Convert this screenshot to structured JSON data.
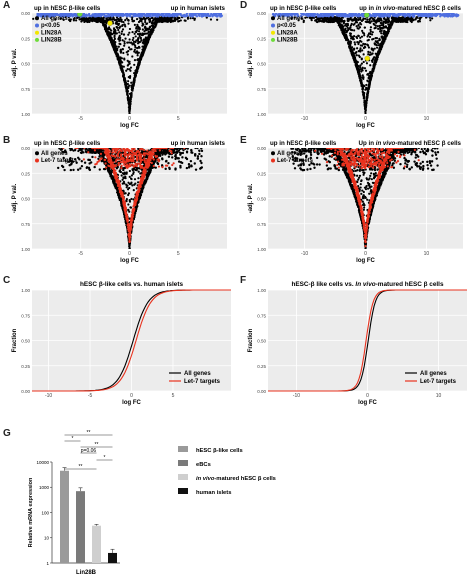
{
  "chart_data": [
    {
      "panel": "A",
      "type": "scatter",
      "subtype": "volcano",
      "header_left": "up in hESC β-like cells",
      "header_right": "up in human islets",
      "xlabel": "log FC",
      "ylabel": "-adj. P val.",
      "xticks": [
        "-5",
        "0",
        "5"
      ],
      "xtick_values": [
        -5,
        0,
        5
      ],
      "yticks": [
        "0.00",
        "0.25",
        "0.50",
        "0.75",
        "1.00"
      ],
      "xlim": [
        -10,
        10
      ],
      "ylim": [
        -1.0,
        0.0
      ],
      "legend": [
        "All genes",
        "p<0.05",
        "LIN28A",
        "LIN28B"
      ],
      "colors": {
        "all": "#000000",
        "sig": "#4f6fe0",
        "lin28a": "#f2e600",
        "lin28b": "#6edc3a"
      },
      "highlights": [
        {
          "name": "LIN28A",
          "x": -2.0,
          "y": -0.1
        },
        {
          "name": "LIN28B",
          "x": -5.1,
          "y": -0.01
        }
      ]
    },
    {
      "panel": "B",
      "type": "scatter",
      "subtype": "volcano",
      "header_left": "up in hESC β-like cells",
      "header_right": "up in human islets",
      "xlabel": "log FC",
      "ylabel": "-adj. P val.",
      "xticks": [
        "-5",
        "0",
        "5"
      ],
      "xtick_values": [
        -5,
        0,
        5
      ],
      "yticks": [
        "0.00",
        "0.25",
        "0.50",
        "0.75",
        "1.00"
      ],
      "xlim": [
        -10,
        10
      ],
      "ylim": [
        -1.0,
        0.0
      ],
      "legend": [
        "All genes",
        "Let-7 targets"
      ],
      "colors": {
        "all": "#000000",
        "let7": "#e8321e"
      }
    },
    {
      "panel": "C",
      "type": "line",
      "subtype": "cumulative",
      "title": "hESC β-like cells vs. human islets",
      "xlabel": "log FC",
      "ylabel": "Fraction",
      "xticks": [
        "-10",
        "-5",
        "0",
        "5"
      ],
      "xtick_values": [
        -10,
        -5,
        0,
        5
      ],
      "yticks": [
        "0.00",
        "0.25",
        "0.50",
        "0.75",
        "1.00"
      ],
      "xlim": [
        -12,
        12
      ],
      "ylim": [
        0,
        1
      ],
      "legend": [
        "All genes",
        "Let-7 targets"
      ],
      "series": [
        {
          "name": "All genes",
          "color": "#000000",
          "center": 0.2,
          "scale": 0.9
        },
        {
          "name": "Let-7 targets",
          "color": "#e8321e",
          "center": 0.55,
          "scale": 0.9
        }
      ]
    },
    {
      "panel": "D",
      "type": "scatter",
      "subtype": "volcano",
      "header_left": "up in hESC β-like cells",
      "header_right_prefix": "up in",
      "header_right_italic": "in vivo",
      "header_right_suffix": "-matured hESC β cells",
      "xlabel": "log FC",
      "ylabel": "-adj. P val.",
      "xticks": [
        "-10",
        "0",
        "10"
      ],
      "xtick_values": [
        -10,
        0,
        10
      ],
      "yticks": [
        "0.00",
        "0.25",
        "0.50",
        "0.75",
        "1.00"
      ],
      "xlim": [
        -16,
        16
      ],
      "ylim": [
        -1.0,
        0.0
      ],
      "legend": [
        "All genes",
        "p<0.05",
        "LIN28A",
        "LIN28B"
      ],
      "colors": {
        "all": "#000000",
        "sig": "#4f6fe0",
        "lin28a": "#f2e600",
        "lin28b": "#6edc3a"
      },
      "highlights": [
        {
          "name": "LIN28A",
          "x": 0.3,
          "y": -0.45
        },
        {
          "name": "LIN28B",
          "x": 0.2,
          "y": -0.02
        }
      ]
    },
    {
      "panel": "E",
      "type": "scatter",
      "subtype": "volcano",
      "header_left": "up in hESC β-like cells",
      "header_right_prefix": "Up in",
      "header_right_italic": "in vivo",
      "header_right_suffix": "-matured hESC β cells",
      "xlabel": "log FC",
      "ylabel": "-adj. P val.",
      "xticks": [
        "-10",
        "0",
        "10"
      ],
      "xtick_values": [
        -10,
        0,
        10
      ],
      "yticks": [
        "0.00",
        "0.25",
        "0.50",
        "0.75",
        "1.00"
      ],
      "xlim": [
        -16,
        16
      ],
      "ylim": [
        -1.0,
        0.0
      ],
      "legend": [
        "All genes",
        "Let-7 targets"
      ],
      "colors": {
        "all": "#000000",
        "let7": "#e8321e"
      }
    },
    {
      "panel": "F",
      "type": "line",
      "subtype": "cumulative",
      "title_prefix": "hESC-β like cells vs.",
      "title_italic": "In vivo",
      "title_suffix": "-matured hESC β cells",
      "xlabel": "log FC",
      "ylabel": "Fraction",
      "xticks": [
        "-10",
        "0",
        "10"
      ],
      "xtick_values": [
        -10,
        0,
        10
      ],
      "yticks": [
        "0.00",
        "0.25",
        "0.50",
        "0.75",
        "1.00"
      ],
      "xlim": [
        -14,
        14
      ],
      "ylim": [
        0,
        1
      ],
      "legend": [
        "All genes",
        "Let-7 targets"
      ],
      "series": [
        {
          "name": "All genes",
          "color": "#000000",
          "center": 0.1,
          "scale": 0.5
        },
        {
          "name": "Let-7 targets",
          "color": "#e8321e",
          "center": -0.2,
          "scale": 0.5
        }
      ]
    },
    {
      "panel": "G",
      "type": "bar",
      "scale": "log",
      "ylabel": "Relative mRNA expression",
      "xlabel": "Lin28B",
      "yticks": [
        "10000",
        "1000",
        "100",
        "10",
        "1"
      ],
      "ytick_values": [
        10000,
        1000,
        100,
        10,
        1
      ],
      "ylim": [
        1,
        10000
      ],
      "categories": [
        "hESC β-like cells",
        "eBCs",
        "In vivo-matured hESC β cells",
        "human islets"
      ],
      "values": [
        4500,
        700,
        30,
        2.5
      ],
      "errors": [
        1500,
        250,
        4,
        1
      ],
      "colors": [
        "#9a9a9a",
        "#7a7a7a",
        "#cfcfcf",
        "#111111"
      ],
      "legend_italic_part": "in vivo",
      "legend_third_suffix": "-matured hESC β cells",
      "significance": [
        {
          "from": 0,
          "to": 3,
          "label": "**"
        },
        {
          "from": 0,
          "to": 1,
          "label": "*"
        },
        {
          "from": 1,
          "to": 3,
          "label": "**"
        },
        {
          "from": 1,
          "to": 2,
          "label": "p=0.06"
        },
        {
          "from": 2,
          "to": 3,
          "label": "*"
        },
        {
          "from": 0,
          "to": 2,
          "label": "**"
        }
      ]
    }
  ]
}
